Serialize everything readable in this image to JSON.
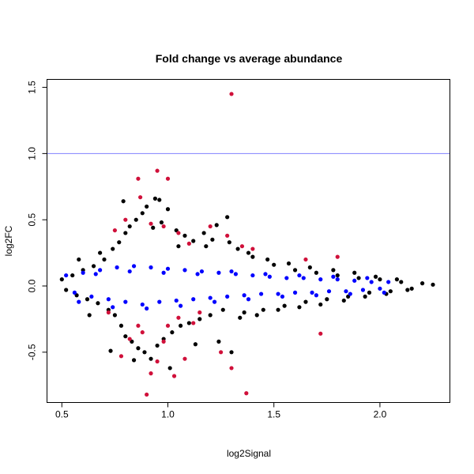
{
  "chart_data": {
    "type": "scatter",
    "title": "Fold change vs average abundance",
    "xlabel": "log2Signal",
    "ylabel": "log2FC",
    "xlim": [
      0.43,
      2.33
    ],
    "ylim": [
      -0.88,
      1.56
    ],
    "xticks": [
      0.5,
      1.0,
      1.5,
      2.0
    ],
    "xtick_labels": [
      "0.5",
      "1.0",
      "1.5",
      "2.0"
    ],
    "yticks": [
      -0.5,
      0.0,
      0.5,
      1.0,
      1.5
    ],
    "ytick_labels": [
      "-0.5",
      "0.0",
      "0.5",
      "1.0",
      "1.5"
    ],
    "grid": false,
    "reference_line": {
      "y": 1.0,
      "color": "#8080ff"
    },
    "series": [
      {
        "color": "#000000",
        "points": [
          [
            0.5,
            0.05
          ],
          [
            0.52,
            -0.03
          ],
          [
            0.55,
            0.08
          ],
          [
            0.57,
            -0.07
          ],
          [
            0.6,
            0.12
          ],
          [
            0.62,
            -0.1
          ],
          [
            0.65,
            0.15
          ],
          [
            0.67,
            -0.13
          ],
          [
            0.7,
            0.2
          ],
          [
            0.72,
            -0.18
          ],
          [
            0.74,
            0.28
          ],
          [
            0.75,
            -0.22
          ],
          [
            0.77,
            0.33
          ],
          [
            0.78,
            -0.3
          ],
          [
            0.8,
            0.4
          ],
          [
            0.8,
            -0.38
          ],
          [
            0.82,
            0.45
          ],
          [
            0.83,
            -0.42
          ],
          [
            0.85,
            0.5
          ],
          [
            0.86,
            -0.47
          ],
          [
            0.88,
            0.55
          ],
          [
            0.89,
            -0.5
          ],
          [
            0.9,
            0.6
          ],
          [
            0.92,
            -0.55
          ],
          [
            0.94,
            0.66
          ],
          [
            0.95,
            -0.45
          ],
          [
            0.97,
            0.48
          ],
          [
            0.98,
            -0.4
          ],
          [
            1.0,
            0.58
          ],
          [
            1.02,
            -0.35
          ],
          [
            1.04,
            0.42
          ],
          [
            1.06,
            -0.3
          ],
          [
            1.08,
            0.38
          ],
          [
            1.1,
            -0.28
          ],
          [
            1.12,
            0.34
          ],
          [
            1.15,
            -0.25
          ],
          [
            1.18,
            0.3
          ],
          [
            1.2,
            -0.22
          ],
          [
            1.23,
            0.46
          ],
          [
            1.26,
            -0.18
          ],
          [
            1.28,
            0.52
          ],
          [
            1.3,
            -0.5
          ],
          [
            1.33,
            0.28
          ],
          [
            1.36,
            -0.2
          ],
          [
            1.4,
            0.22
          ],
          [
            1.45,
            -0.18
          ],
          [
            1.5,
            0.16
          ],
          [
            1.55,
            -0.15
          ],
          [
            1.6,
            0.12
          ],
          [
            1.65,
            -0.12
          ],
          [
            1.7,
            0.1
          ],
          [
            1.75,
            -0.1
          ],
          [
            1.8,
            0.08
          ],
          [
            1.85,
            -0.08
          ],
          [
            1.9,
            0.06
          ],
          [
            1.95,
            -0.05
          ],
          [
            2.0,
            0.05
          ],
          [
            2.05,
            -0.04
          ],
          [
            2.1,
            0.03
          ],
          [
            2.15,
            -0.02
          ],
          [
            2.2,
            0.02
          ],
          [
            2.25,
            0.01
          ],
          [
            0.58,
            0.2
          ],
          [
            0.63,
            -0.22
          ],
          [
            0.68,
            0.25
          ],
          [
            0.73,
            -0.49
          ],
          [
            0.79,
            0.64
          ],
          [
            0.84,
            -0.56
          ],
          [
            0.93,
            0.44
          ],
          [
            0.96,
            0.65
          ],
          [
            1.01,
            -0.62
          ],
          [
            1.05,
            0.3
          ],
          [
            1.13,
            -0.44
          ],
          [
            1.17,
            0.4
          ],
          [
            1.21,
            0.35
          ],
          [
            1.24,
            -0.42
          ],
          [
            1.29,
            0.33
          ],
          [
            1.34,
            -0.24
          ],
          [
            1.38,
            0.25
          ],
          [
            1.42,
            -0.22
          ],
          [
            1.47,
            0.2
          ],
          [
            1.52,
            -0.18
          ],
          [
            1.57,
            0.17
          ],
          [
            1.62,
            -0.16
          ],
          [
            1.67,
            0.14
          ],
          [
            1.72,
            -0.14
          ],
          [
            1.78,
            0.12
          ],
          [
            1.83,
            -0.11
          ],
          [
            1.88,
            0.1
          ],
          [
            1.93,
            -0.08
          ],
          [
            1.98,
            0.07
          ],
          [
            2.03,
            -0.06
          ],
          [
            2.08,
            0.05
          ],
          [
            2.13,
            -0.03
          ]
        ]
      },
      {
        "color": "#0000ff",
        "points": [
          [
            0.52,
            0.08
          ],
          [
            0.56,
            -0.05
          ],
          [
            0.6,
            0.1
          ],
          [
            0.64,
            -0.08
          ],
          [
            0.68,
            0.12
          ],
          [
            0.72,
            -0.1
          ],
          [
            0.76,
            0.14
          ],
          [
            0.8,
            -0.12
          ],
          [
            0.84,
            0.15
          ],
          [
            0.88,
            -0.14
          ],
          [
            0.92,
            0.14
          ],
          [
            0.96,
            -0.12
          ],
          [
            1.0,
            0.13
          ],
          [
            1.04,
            -0.11
          ],
          [
            1.08,
            0.12
          ],
          [
            1.12,
            -0.1
          ],
          [
            1.16,
            0.11
          ],
          [
            1.2,
            -0.09
          ],
          [
            1.24,
            0.1
          ],
          [
            1.28,
            -0.08
          ],
          [
            1.32,
            0.09
          ],
          [
            1.36,
            -0.07
          ],
          [
            1.4,
            0.08
          ],
          [
            1.44,
            -0.06
          ],
          [
            1.48,
            0.07
          ],
          [
            1.52,
            -0.06
          ],
          [
            1.56,
            0.06
          ],
          [
            1.6,
            -0.05
          ],
          [
            1.64,
            0.06
          ],
          [
            1.68,
            -0.05
          ],
          [
            1.72,
            0.05
          ],
          [
            1.76,
            -0.04
          ],
          [
            1.8,
            0.05
          ],
          [
            1.84,
            -0.04
          ],
          [
            1.88,
            0.04
          ],
          [
            1.92,
            -0.03
          ],
          [
            1.96,
            0.03
          ],
          [
            2.0,
            -0.02
          ],
          [
            2.04,
            0.03
          ],
          [
            0.58,
            -0.12
          ],
          [
            0.66,
            0.09
          ],
          [
            0.74,
            -0.16
          ],
          [
            0.82,
            0.11
          ],
          [
            0.9,
            -0.17
          ],
          [
            0.98,
            0.1
          ],
          [
            1.06,
            -0.15
          ],
          [
            1.14,
            0.09
          ],
          [
            1.22,
            -0.12
          ],
          [
            1.3,
            0.11
          ],
          [
            1.38,
            -0.1
          ],
          [
            1.46,
            0.09
          ],
          [
            1.54,
            -0.08
          ],
          [
            1.62,
            0.08
          ],
          [
            1.7,
            -0.07
          ],
          [
            1.78,
            0.07
          ],
          [
            1.86,
            -0.06
          ],
          [
            1.94,
            0.06
          ],
          [
            2.02,
            -0.05
          ]
        ]
      },
      {
        "color": "#d0103a",
        "points": [
          [
            1.3,
            1.45
          ],
          [
            0.95,
            0.87
          ],
          [
            0.86,
            0.81
          ],
          [
            1.0,
            0.81
          ],
          [
            0.87,
            0.67
          ],
          [
            0.8,
            0.5
          ],
          [
            0.92,
            0.47
          ],
          [
            0.98,
            0.45
          ],
          [
            1.05,
            0.4
          ],
          [
            1.1,
            0.32
          ],
          [
            1.2,
            0.45
          ],
          [
            1.28,
            0.38
          ],
          [
            1.35,
            0.3
          ],
          [
            1.4,
            0.28
          ],
          [
            1.65,
            0.2
          ],
          [
            1.8,
            0.22
          ],
          [
            0.75,
            0.42
          ],
          [
            0.72,
            -0.2
          ],
          [
            0.78,
            -0.53
          ],
          [
            0.82,
            -0.4
          ],
          [
            0.86,
            -0.3
          ],
          [
            0.9,
            -0.82
          ],
          [
            0.92,
            -0.66
          ],
          [
            0.95,
            -0.57
          ],
          [
            0.98,
            -0.42
          ],
          [
            1.0,
            -0.3
          ],
          [
            1.03,
            -0.68
          ],
          [
            1.05,
            -0.24
          ],
          [
            1.08,
            -0.55
          ],
          [
            1.12,
            -0.28
          ],
          [
            1.25,
            -0.5
          ],
          [
            1.3,
            -0.62
          ],
          [
            1.37,
            -0.81
          ],
          [
            1.72,
            -0.36
          ],
          [
            1.15,
            -0.2
          ],
          [
            0.88,
            -0.35
          ]
        ]
      }
    ]
  }
}
